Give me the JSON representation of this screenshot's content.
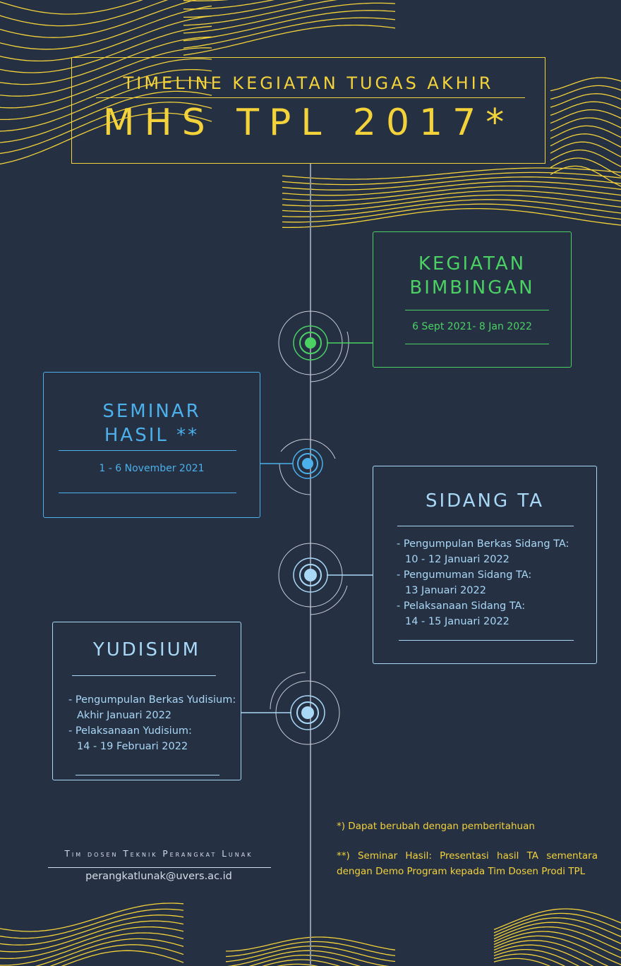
{
  "header": {
    "subtitle": "TIMELINE KEGIATAN TUGAS AKHIR",
    "title": "MHS TPL 2017*"
  },
  "colors": {
    "background": "#253043",
    "accent_yellow": "#f3d23a",
    "green": "#4bd163",
    "blue": "#4cb0ea",
    "light_blue": "#a9d8f7"
  },
  "events": {
    "bimbingan": {
      "title_line1": "KEGIATAN",
      "title_line2": "BIMBINGAN",
      "dates": "6 Sept 2021- 8 Jan 2022"
    },
    "seminar": {
      "title_line1": "SEMINAR",
      "title_line2": "HASIL **",
      "dates": "1 - 6 November 2021"
    },
    "sidang": {
      "title": "SIDANG TA",
      "items": [
        {
          "label": "- Pengumpulan Berkas Sidang TA:",
          "date": "10 - 12 Januari 2022"
        },
        {
          "label": "- Pengumuman Sidang TA:",
          "date": "13 Januari 2022"
        },
        {
          "label": "- Pelaksanaan Sidang TA:",
          "date": "14 - 15 Januari 2022"
        }
      ]
    },
    "yudisium": {
      "title": "YUDISIUM",
      "items": [
        {
          "label": "- Pengumpulan Berkas Yudisium:",
          "date": "Akhir Januari 2022"
        },
        {
          "label": "- Pelaksanaan Yudisium:",
          "date": "14 - 19 Februari 2022"
        }
      ]
    }
  },
  "notes": {
    "note1": "*) Dapat berubah dengan pemberitahuan",
    "note2": "**) Seminar Hasil: Presentasi hasil TA sementara dengan Demo Program kepada Tim Dosen Prodi TPL"
  },
  "footer": {
    "team": "Tim dosen Teknik Perangkat Lunak",
    "email": "perangkatlunak@uvers.ac.id"
  }
}
